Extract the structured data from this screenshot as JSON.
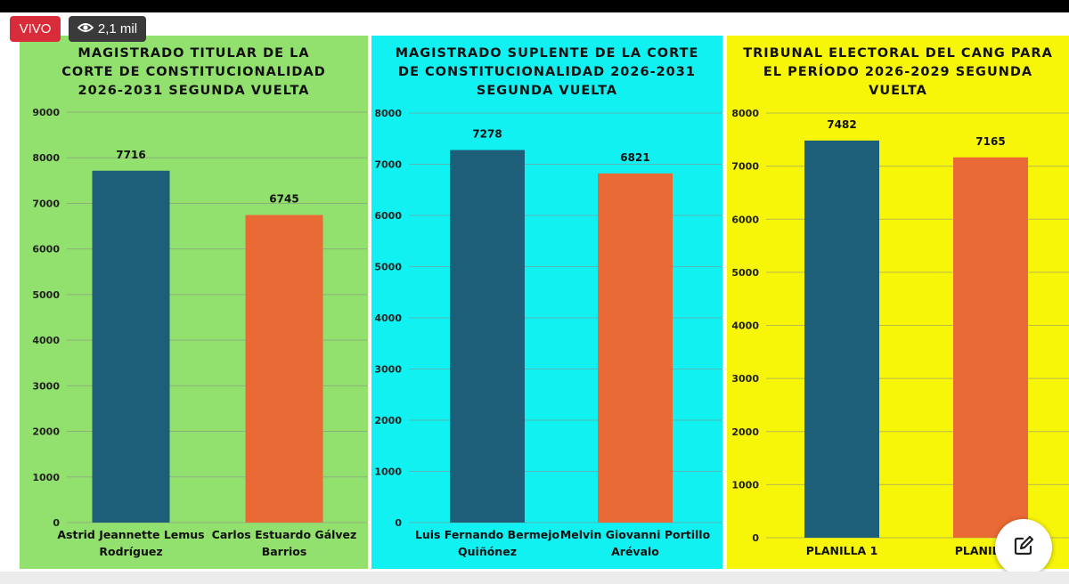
{
  "overlay": {
    "live_label": "VIVO",
    "viewers": "2,1 mil",
    "eye_icon": "eye-icon",
    "edit_icon": "edit-icon"
  },
  "colors": {
    "bar_blue": "#1d5e79",
    "bar_orange": "#ea6a36",
    "panel1_bg": "#92e06e",
    "panel2_bg": "#12f1f1",
    "panel3_bg": "#f7f508",
    "live_red": "#d92c3a"
  },
  "chart_data": [
    {
      "type": "bar",
      "title": "MAGISTRADO TITULAR DE LA\nCORTE DE CONSTITUCIONALIDAD\n2026-2031 SEGUNDA VUELTA",
      "categories": [
        "Astrid Jeannette Lemus\nRodríguez",
        "Carlos Estuardo Gálvez\nBarrios"
      ],
      "values": [
        7716,
        6745
      ],
      "data_labels": [
        "7716",
        "6745"
      ],
      "ylim": [
        0,
        9000
      ],
      "yticks": [
        "0",
        "1000",
        "2000",
        "3000",
        "4000",
        "5000",
        "6000",
        "7000",
        "8000",
        "9000"
      ],
      "grid": true
    },
    {
      "type": "bar",
      "title": "MAGISTRADO SUPLENTE DE LA CORTE\nDE CONSTITUCIONALIDAD 2026-2031\nSEGUNDA VUELTA",
      "categories": [
        "Luis Fernando Bermejo\nQuiñónez",
        "Melvin Giovanni Portillo\nArévalo"
      ],
      "values": [
        7278,
        6821
      ],
      "data_labels": [
        "7278",
        "6821"
      ],
      "ylim": [
        0,
        8000
      ],
      "yticks": [
        "0",
        "1000",
        "2000",
        "3000",
        "4000",
        "5000",
        "6000",
        "7000",
        "8000"
      ],
      "grid": true
    },
    {
      "type": "bar",
      "title": "TRIBUNAL ELECTORAL DEL CANG PARA\nEL PERÍODO 2026-2029 SEGUNDA\nVUELTA",
      "categories": [
        "PLANILLA 1",
        "PLANILLA 2"
      ],
      "values": [
        7482,
        7165
      ],
      "data_labels": [
        "7482",
        "7165"
      ],
      "ylim": [
        0,
        8000
      ],
      "yticks": [
        "0",
        "1000",
        "2000",
        "3000",
        "4000",
        "5000",
        "6000",
        "7000",
        "8000"
      ],
      "grid": true
    }
  ]
}
